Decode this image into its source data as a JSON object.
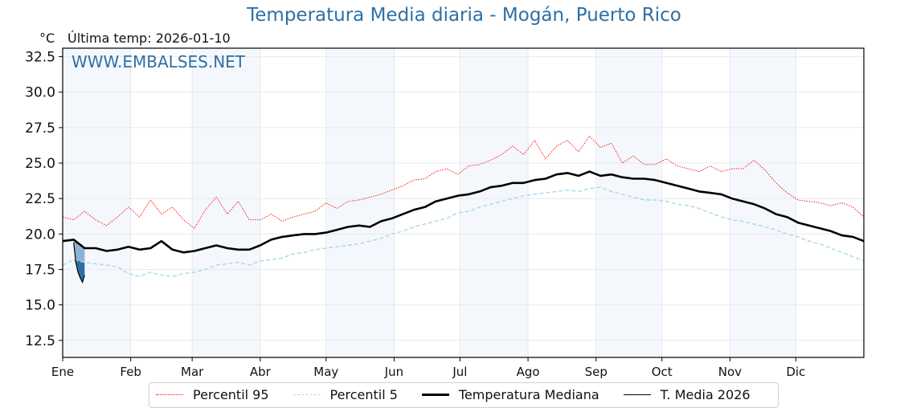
{
  "chart_data": {
    "type": "line",
    "title": "Temperatura Media diaria - Mogán, Puerto Rico",
    "ylabel": "°C",
    "subtitle": "Última temp: 2026-01-10",
    "watermark": "WWW.EMBALSES.NET",
    "ylim": [
      11.3,
      33.1
    ],
    "xlim": [
      0,
      365
    ],
    "yticks": [
      "12.5",
      "15.0",
      "17.5",
      "20.0",
      "22.5",
      "25.0",
      "27.5",
      "30.0",
      "32.5"
    ],
    "ytick_values": [
      12.5,
      15.0,
      17.5,
      20.0,
      22.5,
      25.0,
      27.5,
      30.0,
      32.5
    ],
    "xticks": [
      "Ene",
      "Feb",
      "Mar",
      "Abr",
      "May",
      "Jun",
      "Jul",
      "Ago",
      "Sep",
      "Oct",
      "Nov",
      "Dic"
    ],
    "xtick_days": [
      0,
      31,
      59,
      90,
      120,
      151,
      181,
      212,
      243,
      273,
      304,
      334
    ],
    "shaded_months": [
      "Ene",
      "Mar",
      "May",
      "Jul",
      "Sep",
      "Nov"
    ],
    "grid": true,
    "legend_position": "bottom-center",
    "days": [
      0,
      5,
      10,
      15,
      20,
      25,
      30,
      35,
      40,
      45,
      50,
      55,
      60,
      65,
      70,
      75,
      80,
      85,
      90,
      95,
      100,
      105,
      110,
      115,
      120,
      125,
      130,
      135,
      140,
      145,
      150,
      155,
      160,
      165,
      170,
      175,
      180,
      185,
      190,
      195,
      200,
      205,
      210,
      215,
      220,
      225,
      230,
      235,
      240,
      245,
      250,
      255,
      260,
      265,
      270,
      275,
      280,
      285,
      290,
      295,
      300,
      305,
      310,
      315,
      320,
      325,
      330,
      335,
      340,
      345,
      350,
      355,
      360,
      365
    ],
    "series": [
      {
        "name": "Percentil 95",
        "color": "#ff0000",
        "style": "dotted",
        "values": [
          21.2,
          21.0,
          21.6,
          21.0,
          20.6,
          21.2,
          21.9,
          21.2,
          22.4,
          21.4,
          21.9,
          21.0,
          20.4,
          21.7,
          22.6,
          21.4,
          22.3,
          21.0,
          21.0,
          21.4,
          20.9,
          21.2,
          21.4,
          21.6,
          22.2,
          21.8,
          22.3,
          22.4,
          22.6,
          22.8,
          23.1,
          23.4,
          23.8,
          23.9,
          24.4,
          24.6,
          24.2,
          24.8,
          24.9,
          25.2,
          25.6,
          26.2,
          25.6,
          26.6,
          25.3,
          26.2,
          26.6,
          25.8,
          26.9,
          26.1,
          26.4,
          25.0,
          25.5,
          24.9,
          24.9,
          25.3,
          24.8,
          24.6,
          24.4,
          24.8,
          24.4,
          24.6,
          24.6,
          25.2,
          24.5,
          23.6,
          22.9,
          22.4,
          22.3,
          22.2,
          22.0,
          22.2,
          21.9,
          21.2
        ]
      },
      {
        "name": "Percentil 5",
        "color": "#a8d8ea",
        "style": "dashed",
        "values": [
          17.8,
          18.2,
          18.0,
          17.9,
          17.8,
          17.7,
          17.2,
          17.0,
          17.3,
          17.1,
          17.0,
          17.2,
          17.3,
          17.5,
          17.8,
          17.9,
          18.0,
          17.8,
          18.1,
          18.2,
          18.3,
          18.6,
          18.7,
          18.9,
          19.0,
          19.1,
          19.2,
          19.3,
          19.5,
          19.7,
          20.0,
          20.2,
          20.5,
          20.7,
          20.9,
          21.1,
          21.5,
          21.6,
          21.9,
          22.1,
          22.3,
          22.5,
          22.7,
          22.8,
          22.9,
          23.0,
          23.1,
          23.0,
          23.2,
          23.3,
          23.0,
          22.8,
          22.6,
          22.4,
          22.4,
          22.3,
          22.1,
          22.0,
          21.8,
          21.5,
          21.2,
          21.0,
          20.9,
          20.7,
          20.5,
          20.3,
          20.0,
          19.8,
          19.5,
          19.3,
          19.0,
          18.7,
          18.4,
          18.1
        ]
      },
      {
        "name": "Temperatura Mediana",
        "color": "#000000",
        "style": "solid-thick",
        "values": [
          19.5,
          19.6,
          19.0,
          19.0,
          18.8,
          18.9,
          19.1,
          18.9,
          19.0,
          19.5,
          18.9,
          18.7,
          18.8,
          19.0,
          19.2,
          19.0,
          18.9,
          18.9,
          19.2,
          19.6,
          19.8,
          19.9,
          20.0,
          20.0,
          20.1,
          20.3,
          20.5,
          20.6,
          20.5,
          20.9,
          21.1,
          21.4,
          21.7,
          21.9,
          22.3,
          22.5,
          22.7,
          22.8,
          23.0,
          23.3,
          23.4,
          23.6,
          23.6,
          23.8,
          23.9,
          24.2,
          24.3,
          24.1,
          24.4,
          24.1,
          24.2,
          24.0,
          23.9,
          23.9,
          23.8,
          23.6,
          23.4,
          23.2,
          23.0,
          22.9,
          22.8,
          22.5,
          22.3,
          22.1,
          21.8,
          21.4,
          21.2,
          20.8,
          20.6,
          20.4,
          20.2,
          19.9,
          19.8,
          19.5
        ]
      },
      {
        "name": "T. Media 2026",
        "color": "#000000",
        "style": "solid-thin",
        "days": [
          5,
          6,
          7,
          8,
          9,
          10
        ],
        "values": [
          19.4,
          18.0,
          17.3,
          16.9,
          16.6,
          17.1
        ]
      }
    ],
    "fill_colors": {
      "above_p5": "#8fb3d4",
      "below_p5": "#2f6ea6"
    }
  },
  "legend": {
    "items": [
      "Percentil 95",
      "Percentil 5",
      "Temperatura Mediana",
      "T. Media 2026"
    ]
  }
}
